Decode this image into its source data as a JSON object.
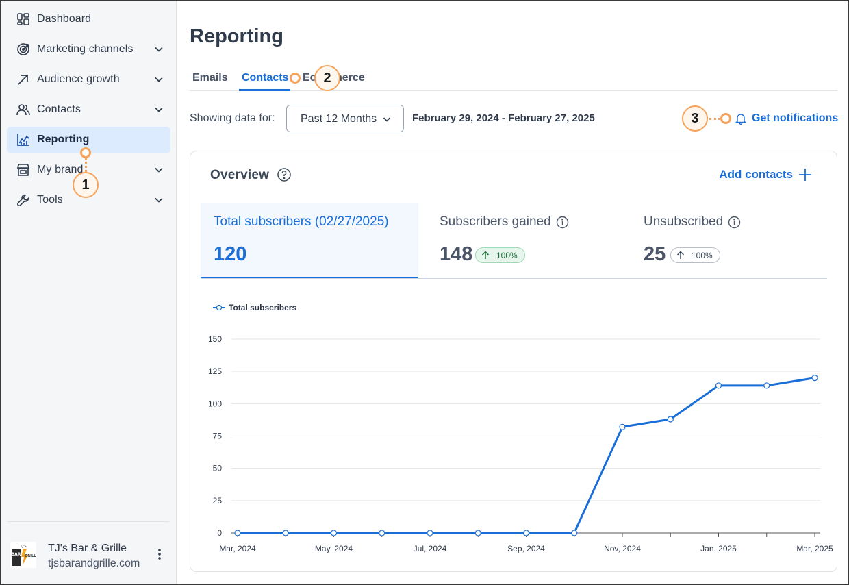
{
  "sidebar": {
    "items": [
      {
        "label": "Dashboard",
        "icon": "dashboard-icon",
        "expandable": false
      },
      {
        "label": "Marketing channels",
        "icon": "target-icon",
        "expandable": true
      },
      {
        "label": "Audience growth",
        "icon": "arrow-up-right-icon",
        "expandable": true
      },
      {
        "label": "Contacts",
        "icon": "people-icon",
        "expandable": true
      },
      {
        "label": "Reporting",
        "icon": "chart-icon",
        "expandable": false,
        "active": true
      },
      {
        "label": "My brand",
        "icon": "store-icon",
        "expandable": true
      },
      {
        "label": "Tools",
        "icon": "wrench-icon",
        "expandable": true
      }
    ],
    "account": {
      "name": "TJ's Bar & Grille",
      "domain": "tjsbarandgrille.com",
      "logo_text": "BAR GRILLE"
    }
  },
  "page": {
    "title": "Reporting"
  },
  "tabs": [
    {
      "label": "Emails",
      "active": false
    },
    {
      "label": "Contacts",
      "active": true
    },
    {
      "label": "Ecommerce",
      "active": false
    }
  ],
  "filter": {
    "label": "Showing data for:",
    "selected": "Past 12 Months",
    "date_range": "February 29, 2024 - February 27, 2025",
    "notifications": "Get notifications"
  },
  "overview": {
    "title": "Overview",
    "add_contacts": "Add contacts",
    "metrics": [
      {
        "label": "Total subscribers (02/27/2025)",
        "value": "120",
        "active": true
      },
      {
        "label": "Subscribers gained",
        "value": "148",
        "change": "100%",
        "trend": "up",
        "style": "green"
      },
      {
        "label": "Unsubscribed",
        "value": "25",
        "change": "100%",
        "trend": "up",
        "style": "grey"
      }
    ]
  },
  "annotations": [
    "1",
    "2",
    "3"
  ],
  "colors": {
    "accent": "#1a6ed8",
    "annotation": "#f5a35a"
  },
  "chart_data": {
    "type": "line",
    "legend": "Total subscribers",
    "x": [
      "Mar, 2024",
      "Apr, 2024",
      "May, 2024",
      "Jun, 2024",
      "Jul, 2024",
      "Aug, 2024",
      "Sep, 2024",
      "Oct, 2024",
      "Nov, 2024",
      "Dec, 2024",
      "Jan, 2025",
      "Feb, 2025",
      "Mar, 2025"
    ],
    "xtick_labels": [
      "Mar, 2024",
      "",
      "May, 2024",
      "",
      "Jul, 2024",
      "",
      "Sep, 2024",
      "",
      "Nov, 2024",
      "",
      "Jan, 2025",
      "",
      "Mar, 2025"
    ],
    "values": [
      0,
      0,
      0,
      0,
      0,
      0,
      0,
      0,
      82,
      88,
      114,
      114,
      120
    ],
    "yticks": [
      0,
      25,
      50,
      75,
      100,
      125,
      150
    ],
    "ylim": [
      0,
      150
    ],
    "grid": true
  }
}
